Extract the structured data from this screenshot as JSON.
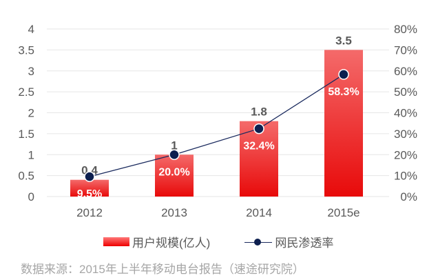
{
  "chart_data": {
    "type": "bar+line",
    "categories": [
      "2012",
      "2013",
      "2014",
      "2015e"
    ],
    "series": [
      {
        "name": "用户规模(亿人)",
        "type": "bar",
        "axis": "left",
        "values": [
          0.4,
          1,
          1.8,
          3.5
        ],
        "labels": [
          "0.4",
          "1",
          "1.8",
          "3.5"
        ],
        "color": "#ee1111"
      },
      {
        "name": "网民渗透率",
        "type": "line",
        "axis": "right",
        "values": [
          9.5,
          20.0,
          32.4,
          58.3
        ],
        "labels": [
          "9.5%",
          "20.0%",
          "32.4%",
          "58.3%"
        ],
        "color": "#0d1f4f"
      }
    ],
    "y_left": {
      "range": [
        0,
        4
      ],
      "ticks": [
        "0",
        "0.5",
        "1",
        "1.5",
        "2",
        "2.5",
        "3",
        "3.5",
        "4"
      ]
    },
    "y_right": {
      "range": [
        0,
        80
      ],
      "ticks": [
        "0%",
        "10%",
        "20%",
        "30%",
        "40%",
        "50%",
        "60%",
        "70%",
        "80%"
      ]
    },
    "grid": true,
    "legend_position": "bottom"
  },
  "source": "数据来源：2015年上半年移动电台报告（速途研究院）"
}
